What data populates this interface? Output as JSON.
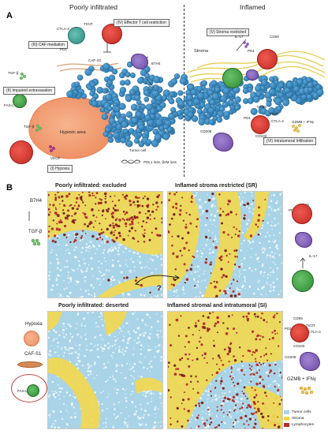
{
  "panel_a": {
    "letter": "A",
    "left_title": "Poorly infiltrated",
    "right_title": "Inflamed",
    "mechanisms": {
      "cd_i": "(I) Hypoxia",
      "cd_ii": "(II) Impaired extravasation",
      "cd_iii": "(III) CAF mediation",
      "cd_iv": "(IV) Effector T cell restriction",
      "cd_v": "(V) Stroma restricted",
      "cd_vi": "(VI) Intratumoral Infiltration"
    },
    "labels": {
      "ctla4_l": "CTLA-4",
      "tigit_l": "TIGIT",
      "pd1_l": "PD1",
      "caf_s1": "CAF-S1",
      "b7h4": "B7H4",
      "tgfb_l": "TGF-β",
      "fasl": "FAS-L",
      "tgfb_l2": "TGF-β",
      "vegf": "VEGF",
      "hypoxic": "Hypoxic area",
      "tumor_cell": "Tumor cell",
      "pdl1": "PDL1 loss, β2M loss",
      "stroma": "Stroma",
      "il17": "IL-17",
      "cd69": "CD69",
      "pd1_r": "PD1",
      "cd69_r2": "CD69",
      "tigit_r": "TIGIT",
      "pd1_r2": "PD1",
      "ctla4_r": "CTLA-4",
      "cd103": "CD103",
      "cd206": "CD206",
      "gzmb": "GZMB + IFNγ"
    }
  },
  "panel_b": {
    "letter": "B",
    "titles": {
      "excluded": "Poorly infiltrated: excluded",
      "sr": "Inflamed stroma restricted (SR)",
      "deserted": "Poorly infiltrated: deserted",
      "si": "Inflamed stromal and intratumoral (SI)"
    },
    "question": "?",
    "side": {
      "b7h4": "B7H4",
      "tgfb": "TGF-β",
      "cd69": "CD69",
      "pd1": "PD1",
      "il17": "IL-17",
      "hypoxia": "Hypoxia",
      "caf_s1": "CAF-S1",
      "fasl": "FAS-L",
      "cd69_2": "CD69",
      "tigit": "TIGIT",
      "pd1_2": "PD1",
      "ctla4": "CTLA-4",
      "cd103": "CD103",
      "cd206": "CD206",
      "gzmb": "GZMB + IFNγ"
    },
    "legend": [
      {
        "label": "Tumor cells",
        "color": "#a9d4e8"
      },
      {
        "label": "Stroma",
        "color": "#f3d64e"
      },
      {
        "label": "Lymphocytes",
        "color": "#b5322b"
      }
    ]
  },
  "colors": {
    "tumor": "#3c8fc7",
    "tumor_dark": "#2b6f9e",
    "tcell_red": "#d9342b",
    "tcell_green": "#46a84a",
    "macrophage": "#7f5db5",
    "hypoxic": "#f4a57c",
    "stroma_yellow": "#e8d24a",
    "tile_blue": "#a9d4e8"
  }
}
